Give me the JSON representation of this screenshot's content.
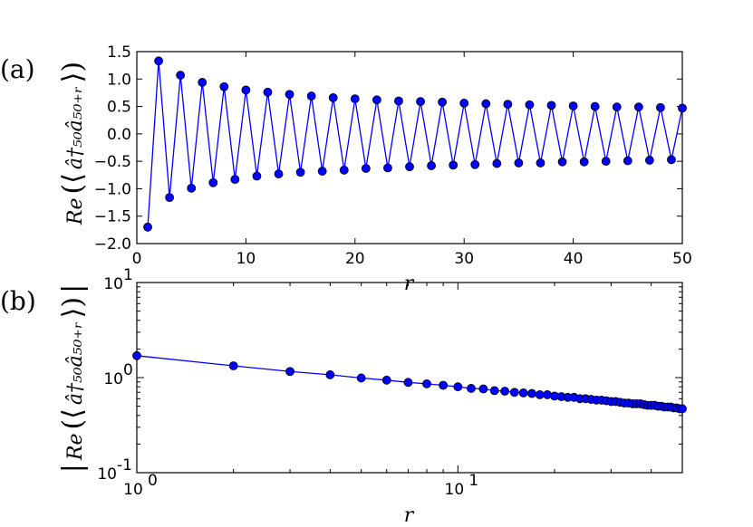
{
  "chart_data": [
    {
      "panel": "(a)",
      "type": "line",
      "xlabel": "r",
      "ylabel": {
        "prefix": "Re",
        "open": "(⟨",
        "expr": "â†₅₀â₅₀₊ᵣ",
        "close": "⟩)"
      },
      "xlim": [
        0,
        50
      ],
      "ylim": [
        -2.0,
        1.5
      ],
      "xticks": [
        0,
        10,
        20,
        30,
        40,
        50
      ],
      "yticks": [
        -2.0,
        -1.5,
        -1.0,
        -0.5,
        0.0,
        0.5,
        1.0,
        1.5
      ],
      "xtick_labels": [
        "0",
        "10",
        "20",
        "30",
        "40",
        "50"
      ],
      "ytick_labels": [
        "−2.0",
        "−1.5",
        "−1.0",
        "−0.5",
        "0.0",
        "0.5",
        "1.0",
        "1.5"
      ],
      "grid": false,
      "color": "#0000ff",
      "x": [
        1,
        2,
        3,
        4,
        5,
        6,
        7,
        8,
        9,
        10,
        11,
        12,
        13,
        14,
        15,
        16,
        17,
        18,
        19,
        20,
        21,
        22,
        23,
        24,
        25,
        26,
        27,
        28,
        29,
        30,
        31,
        32,
        33,
        34,
        35,
        36,
        37,
        38,
        39,
        40,
        41,
        42,
        43,
        44,
        45,
        46,
        47,
        48,
        49,
        50
      ],
      "y": [
        -1.7,
        1.33,
        -1.16,
        1.07,
        -0.99,
        0.94,
        -0.89,
        0.86,
        -0.83,
        0.8,
        -0.77,
        0.76,
        -0.73,
        0.72,
        -0.7,
        0.69,
        -0.68,
        0.66,
        -0.66,
        0.64,
        -0.63,
        0.62,
        -0.62,
        0.6,
        -0.6,
        0.59,
        -0.58,
        0.58,
        -0.57,
        0.56,
        -0.56,
        0.55,
        -0.54,
        0.54,
        -0.53,
        0.53,
        -0.53,
        0.52,
        -0.51,
        0.51,
        -0.51,
        0.5,
        -0.5,
        0.49,
        -0.49,
        0.49,
        -0.48,
        0.48,
        -0.47,
        0.47
      ]
    },
    {
      "panel": "(b)",
      "type": "line",
      "xscale": "log",
      "yscale": "log",
      "xlabel": "r",
      "ylabel": {
        "prefix": "Re",
        "open": "(⟨",
        "expr": "â†₅₀â₅₀₊ᵣ",
        "close": "⟩)",
        "abs": true
      },
      "xlim": [
        1,
        50
      ],
      "ylim": [
        0.1,
        10
      ],
      "xticks": [
        1,
        10
      ],
      "yticks": [
        0.1,
        1,
        10
      ],
      "xtick_labels": [
        {
          "base": "10",
          "exp": "0"
        },
        {
          "base": "10",
          "exp": "1"
        }
      ],
      "ytick_labels": [
        {
          "base": "10",
          "exp": "-1"
        },
        {
          "base": "10",
          "exp": "0"
        },
        {
          "base": "10",
          "exp": "1"
        }
      ],
      "grid": false,
      "color": "#0000ff",
      "x": [
        1,
        2,
        3,
        4,
        5,
        6,
        7,
        8,
        9,
        10,
        11,
        12,
        13,
        14,
        15,
        16,
        17,
        18,
        19,
        20,
        21,
        22,
        23,
        24,
        25,
        26,
        27,
        28,
        29,
        30,
        31,
        32,
        33,
        34,
        35,
        36,
        37,
        38,
        39,
        40,
        41,
        42,
        43,
        44,
        45,
        46,
        47,
        48,
        49,
        50
      ],
      "y": [
        1.7,
        1.33,
        1.16,
        1.07,
        0.99,
        0.94,
        0.89,
        0.86,
        0.83,
        0.8,
        0.77,
        0.76,
        0.73,
        0.72,
        0.7,
        0.69,
        0.68,
        0.66,
        0.66,
        0.64,
        0.63,
        0.62,
        0.62,
        0.6,
        0.6,
        0.59,
        0.58,
        0.58,
        0.57,
        0.56,
        0.56,
        0.55,
        0.54,
        0.54,
        0.53,
        0.53,
        0.53,
        0.52,
        0.51,
        0.51,
        0.51,
        0.5,
        0.5,
        0.49,
        0.49,
        0.49,
        0.48,
        0.48,
        0.47,
        0.47
      ]
    }
  ]
}
